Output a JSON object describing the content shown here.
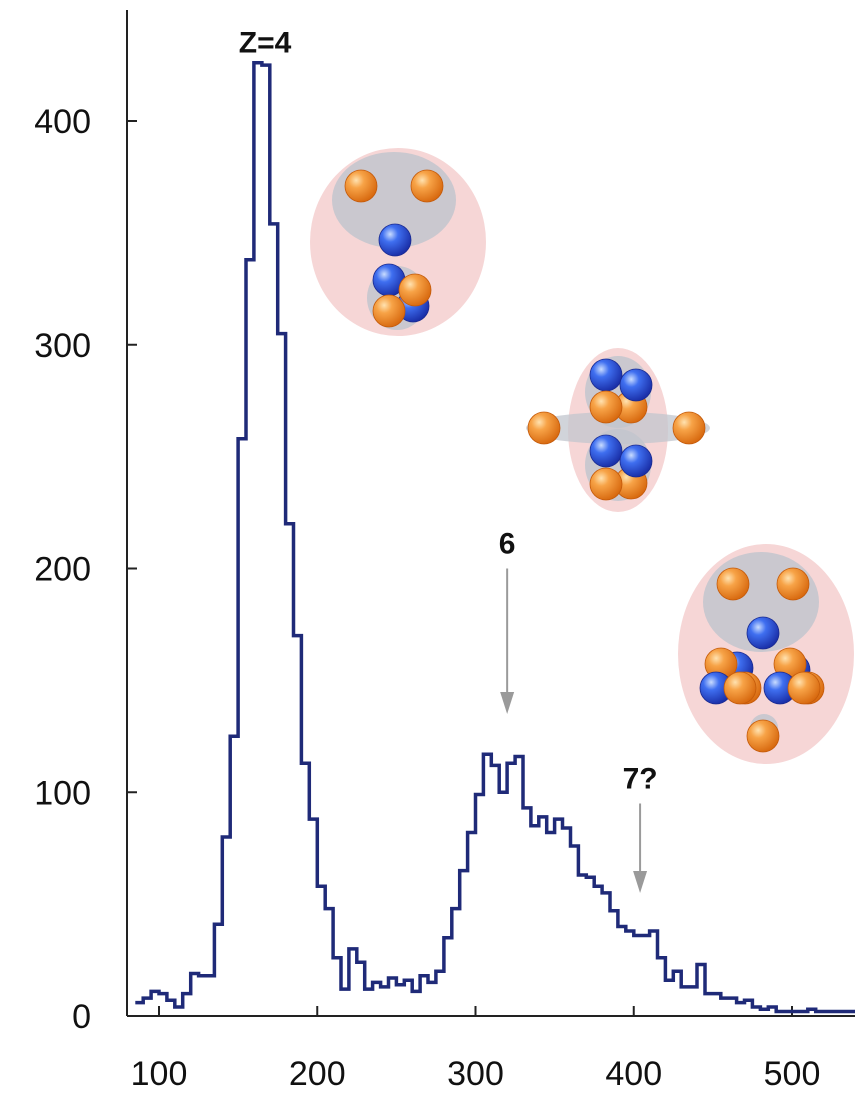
{
  "chart_data": {
    "type": "histogram",
    "xlim": [
      80,
      540
    ],
    "ylim": [
      0,
      440
    ],
    "x_ticks": [
      100,
      200,
      300,
      400,
      500
    ],
    "y_ticks": [
      0,
      100,
      200,
      300,
      400
    ],
    "x_tick_labels": [
      "100",
      "200",
      "300",
      "400",
      "500"
    ],
    "y_tick_labels": [
      "0",
      "100",
      "200",
      "300",
      "400"
    ],
    "grid": false,
    "bin_width": 5,
    "series": [
      {
        "color": "#1f2a78",
        "bins": [
          [
            85,
            6
          ],
          [
            90,
            8
          ],
          [
            95,
            11
          ],
          [
            100,
            10
          ],
          [
            105,
            7
          ],
          [
            110,
            4
          ],
          [
            115,
            10
          ],
          [
            120,
            19
          ],
          [
            125,
            18
          ],
          [
            130,
            18
          ],
          [
            135,
            41
          ],
          [
            140,
            80
          ],
          [
            145,
            125
          ],
          [
            150,
            258
          ],
          [
            155,
            338
          ],
          [
            160,
            426
          ],
          [
            165,
            425
          ],
          [
            170,
            354
          ],
          [
            175,
            305
          ],
          [
            180,
            220
          ],
          [
            185,
            170
          ],
          [
            190,
            113
          ],
          [
            195,
            88
          ],
          [
            200,
            58
          ],
          [
            205,
            48
          ],
          [
            210,
            26
          ],
          [
            215,
            12
          ],
          [
            220,
            30
          ],
          [
            225,
            24
          ],
          [
            230,
            12
          ],
          [
            235,
            15
          ],
          [
            240,
            13
          ],
          [
            245,
            17
          ],
          [
            250,
            14
          ],
          [
            255,
            16
          ],
          [
            260,
            11
          ],
          [
            265,
            18
          ],
          [
            270,
            15
          ],
          [
            275,
            20
          ],
          [
            280,
            35
          ],
          [
            285,
            48
          ],
          [
            290,
            65
          ],
          [
            295,
            82
          ],
          [
            300,
            99
          ],
          [
            305,
            117
          ],
          [
            310,
            112
          ],
          [
            315,
            100
          ],
          [
            320,
            113
          ],
          [
            325,
            116
          ],
          [
            330,
            93
          ],
          [
            335,
            85
          ],
          [
            340,
            89
          ],
          [
            345,
            82
          ],
          [
            350,
            88
          ],
          [
            355,
            84
          ],
          [
            360,
            76
          ],
          [
            365,
            63
          ],
          [
            370,
            62
          ],
          [
            375,
            58
          ],
          [
            380,
            55
          ],
          [
            385,
            47
          ],
          [
            390,
            40
          ],
          [
            395,
            38
          ],
          [
            400,
            36
          ],
          [
            405,
            36
          ],
          [
            410,
            38
          ],
          [
            415,
            26
          ],
          [
            420,
            16
          ],
          [
            425,
            20
          ],
          [
            430,
            13
          ],
          [
            435,
            13
          ],
          [
            440,
            23
          ],
          [
            445,
            10
          ],
          [
            450,
            10
          ],
          [
            455,
            8
          ],
          [
            460,
            8
          ],
          [
            465,
            6
          ],
          [
            470,
            7
          ],
          [
            475,
            4
          ],
          [
            480,
            3
          ],
          [
            485,
            4
          ],
          [
            490,
            2
          ],
          [
            495,
            2
          ],
          [
            500,
            2
          ],
          [
            505,
            2
          ],
          [
            510,
            3
          ],
          [
            515,
            2
          ],
          [
            520,
            2
          ],
          [
            525,
            2
          ],
          [
            530,
            2
          ],
          [
            535,
            2
          ]
        ]
      }
    ],
    "annotations": [
      {
        "text": "Z=4",
        "x": 167,
        "y": 436,
        "arrow": false
      },
      {
        "text": "6",
        "x": 320,
        "y": 212,
        "arrow": true,
        "arrow_from_y": 200,
        "arrow_to_y": 135
      },
      {
        "text": "7?",
        "x": 404,
        "y": 107,
        "arrow": true,
        "arrow_from_y": 95,
        "arrow_to_y": 55
      }
    ],
    "clusters": [
      {
        "circle_color": "#f6d6d6",
        "ellipse_color": "#c2c6ce",
        "spheres": [
          {
            "c": "orange"
          },
          {
            "c": "orange"
          },
          {
            "c": "blue"
          },
          {
            "c": "blue"
          },
          {
            "c": "blue"
          },
          {
            "c": "orange"
          },
          {
            "c": "orange"
          }
        ]
      },
      {
        "circle_color": "#f6d6d6",
        "ellipse_color": "#c2c6ce",
        "spheres": [
          {
            "c": "blue"
          },
          {
            "c": "orange"
          },
          {
            "c": "blue"
          },
          {
            "c": "orange"
          },
          {
            "c": "orange"
          },
          {
            "c": "orange"
          },
          {
            "c": "blue"
          },
          {
            "c": "orange"
          },
          {
            "c": "blue"
          },
          {
            "c": "orange"
          }
        ]
      },
      {
        "circle_color": "#f6d6d6",
        "ellipse_color": "#c2c6ce",
        "spheres": [
          {
            "c": "orange"
          },
          {
            "c": "orange"
          },
          {
            "c": "blue"
          },
          {
            "c": "blue"
          },
          {
            "c": "orange"
          },
          {
            "c": "orange"
          },
          {
            "c": "blue"
          },
          {
            "c": "orange"
          },
          {
            "c": "orange"
          },
          {
            "c": "blue"
          },
          {
            "c": "orange"
          },
          {
            "c": "blue"
          },
          {
            "c": "orange"
          },
          {
            "c": "orange"
          }
        ]
      }
    ]
  }
}
